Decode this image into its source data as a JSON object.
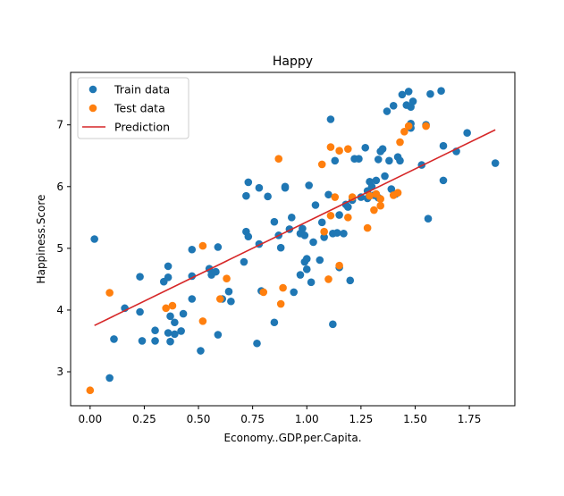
{
  "chart_data": {
    "type": "scatter",
    "title": "Happy",
    "xlabel": "Economy..GDP.per.Capita.",
    "ylabel": "Happiness.Score",
    "xlim": [
      -0.09,
      1.96
    ],
    "ylim": [
      2.45,
      7.85
    ],
    "xticks": [
      0.0,
      0.25,
      0.5,
      0.75,
      1.0,
      1.25,
      1.5,
      1.75
    ],
    "xtick_labels": [
      "0.00",
      "0.25",
      "0.50",
      "0.75",
      "1.00",
      "1.25",
      "1.50",
      "1.75"
    ],
    "yticks": [
      3,
      4,
      5,
      6,
      7
    ],
    "ytick_labels": [
      "3",
      "4",
      "5",
      "6",
      "7"
    ],
    "legend_position": "top-left",
    "colors": {
      "train": "#1f77b4",
      "test": "#ff7f0e",
      "prediction": "#d62728"
    },
    "series": [
      {
        "name": "Train data",
        "kind": "scatter",
        "points": [
          [
            0.02,
            5.15
          ],
          [
            0.09,
            2.9
          ],
          [
            0.11,
            3.53
          ],
          [
            0.16,
            4.03
          ],
          [
            0.23,
            4.54
          ],
          [
            0.23,
            3.97
          ],
          [
            0.24,
            3.5
          ],
          [
            0.3,
            3.5
          ],
          [
            0.3,
            3.67
          ],
          [
            0.34,
            4.46
          ],
          [
            0.36,
            4.71
          ],
          [
            0.36,
            4.53
          ],
          [
            0.36,
            3.63
          ],
          [
            0.37,
            3.9
          ],
          [
            0.37,
            3.49
          ],
          [
            0.39,
            3.61
          ],
          [
            0.39,
            3.8
          ],
          [
            0.42,
            3.66
          ],
          [
            0.43,
            3.94
          ],
          [
            0.47,
            4.98
          ],
          [
            0.47,
            4.55
          ],
          [
            0.47,
            4.18
          ],
          [
            0.51,
            3.34
          ],
          [
            0.55,
            4.67
          ],
          [
            0.56,
            4.57
          ],
          [
            0.58,
            4.62
          ],
          [
            0.59,
            3.6
          ],
          [
            0.59,
            5.02
          ],
          [
            0.61,
            4.18
          ],
          [
            0.64,
            4.3
          ],
          [
            0.65,
            4.14
          ],
          [
            0.71,
            4.78
          ],
          [
            0.72,
            5.85
          ],
          [
            0.72,
            5.27
          ],
          [
            0.73,
            6.07
          ],
          [
            0.73,
            5.19
          ],
          [
            0.77,
            3.46
          ],
          [
            0.78,
            5.98
          ],
          [
            0.78,
            5.07
          ],
          [
            0.79,
            4.31
          ],
          [
            0.82,
            5.84
          ],
          [
            0.85,
            5.43
          ],
          [
            0.85,
            3.8
          ],
          [
            0.87,
            5.21
          ],
          [
            0.88,
            5.01
          ],
          [
            0.9,
            5.98
          ],
          [
            0.9,
            6.0
          ],
          [
            0.92,
            5.31
          ],
          [
            0.93,
            5.5
          ],
          [
            0.94,
            4.29
          ],
          [
            0.97,
            5.24
          ],
          [
            0.97,
            4.57
          ],
          [
            0.98,
            5.32
          ],
          [
            0.99,
            5.21
          ],
          [
            0.99,
            4.78
          ],
          [
            1.0,
            4.83
          ],
          [
            1.0,
            4.66
          ],
          [
            1.01,
            6.02
          ],
          [
            1.02,
            4.45
          ],
          [
            1.03,
            5.1
          ],
          [
            1.04,
            5.7
          ],
          [
            1.06,
            4.81
          ],
          [
            1.07,
            5.42
          ],
          [
            1.08,
            5.18
          ],
          [
            1.1,
            5.87
          ],
          [
            1.11,
            7.09
          ],
          [
            1.12,
            3.77
          ],
          [
            1.12,
            5.24
          ],
          [
            1.13,
            6.42
          ],
          [
            1.14,
            5.25
          ],
          [
            1.15,
            5.54
          ],
          [
            1.15,
            4.69
          ],
          [
            1.17,
            5.24
          ],
          [
            1.18,
            5.71
          ],
          [
            1.19,
            5.67
          ],
          [
            1.2,
            4.48
          ],
          [
            1.21,
            5.78
          ],
          [
            1.22,
            6.45
          ],
          [
            1.24,
            6.45
          ],
          [
            1.25,
            5.83
          ],
          [
            1.27,
            6.63
          ],
          [
            1.28,
            5.93
          ],
          [
            1.28,
            5.81
          ],
          [
            1.29,
            6.08
          ],
          [
            1.3,
            6.0
          ],
          [
            1.31,
            5.86
          ],
          [
            1.32,
            6.1
          ],
          [
            1.33,
            5.82
          ],
          [
            1.33,
            6.44
          ],
          [
            1.34,
            6.57
          ],
          [
            1.35,
            6.61
          ],
          [
            1.36,
            6.17
          ],
          [
            1.37,
            7.22
          ],
          [
            1.38,
            6.42
          ],
          [
            1.39,
            5.96
          ],
          [
            1.4,
            7.31
          ],
          [
            1.41,
            5.88
          ],
          [
            1.42,
            6.48
          ],
          [
            1.43,
            6.42
          ],
          [
            1.44,
            7.49
          ],
          [
            1.46,
            7.32
          ],
          [
            1.47,
            7.54
          ],
          [
            1.48,
            7.29
          ],
          [
            1.48,
            7.02
          ],
          [
            1.48,
            6.95
          ],
          [
            1.49,
            7.38
          ],
          [
            1.53,
            6.35
          ],
          [
            1.55,
            7.0
          ],
          [
            1.56,
            5.48
          ],
          [
            1.57,
            7.5
          ],
          [
            1.62,
            7.55
          ],
          [
            1.63,
            6.66
          ],
          [
            1.63,
            6.1
          ],
          [
            1.69,
            6.57
          ],
          [
            1.74,
            6.87
          ],
          [
            1.87,
            6.38
          ]
        ]
      },
      {
        "name": "Test data",
        "kind": "scatter",
        "points": [
          [
            0.0,
            2.7
          ],
          [
            0.09,
            4.28
          ],
          [
            0.35,
            4.03
          ],
          [
            0.38,
            4.07
          ],
          [
            0.52,
            3.82
          ],
          [
            0.52,
            5.04
          ],
          [
            0.6,
            4.18
          ],
          [
            0.63,
            4.51
          ],
          [
            0.8,
            4.29
          ],
          [
            0.87,
            6.45
          ],
          [
            0.88,
            4.1
          ],
          [
            0.89,
            4.36
          ],
          [
            1.07,
            6.36
          ],
          [
            1.08,
            5.27
          ],
          [
            1.1,
            4.5
          ],
          [
            1.11,
            5.53
          ],
          [
            1.11,
            6.64
          ],
          [
            1.13,
            5.83
          ],
          [
            1.15,
            6.58
          ],
          [
            1.15,
            4.72
          ],
          [
            1.19,
            6.61
          ],
          [
            1.19,
            5.5
          ],
          [
            1.21,
            5.83
          ],
          [
            1.28,
            5.33
          ],
          [
            1.29,
            5.85
          ],
          [
            1.31,
            5.62
          ],
          [
            1.32,
            5.88
          ],
          [
            1.34,
            5.69
          ],
          [
            1.4,
            5.86
          ],
          [
            1.43,
            6.72
          ],
          [
            1.45,
            6.89
          ],
          [
            1.47,
            6.98
          ],
          [
            1.55,
            6.98
          ],
          [
            1.34,
            5.8
          ],
          [
            1.42,
            5.9
          ]
        ]
      },
      {
        "name": "Prediction",
        "kind": "line",
        "x": [
          0.02,
          1.87
        ],
        "y": [
          3.75,
          6.92
        ]
      }
    ]
  }
}
